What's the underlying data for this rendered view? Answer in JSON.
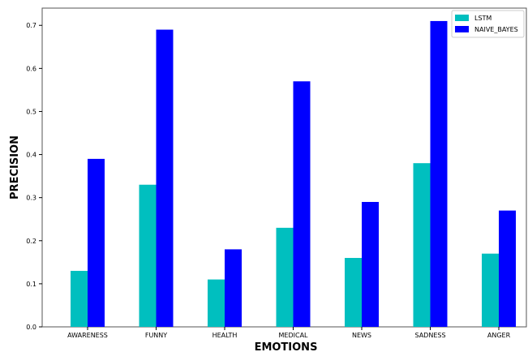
{
  "chart_data": {
    "type": "bar",
    "title": "",
    "xlabel": "EMOTIONS",
    "ylabel": "PRECISION",
    "categories": [
      "AWARENESS",
      "FUNNY",
      "HEALTH",
      "MEDICAL",
      "NEWS",
      "SADNESS",
      "ANGER"
    ],
    "series": [
      {
        "name": "LSTM",
        "color": "#00bfbf",
        "values": [
          0.13,
          0.33,
          0.11,
          0.23,
          0.16,
          0.38,
          0.17
        ]
      },
      {
        "name": "NAIVE_BAYES",
        "color": "#0000ff",
        "values": [
          0.39,
          0.69,
          0.18,
          0.57,
          0.29,
          0.71,
          0.27
        ]
      }
    ],
    "ylim": [
      0,
      0.74
    ],
    "yticks": [
      "0.0",
      "0.1",
      "0.2",
      "0.3",
      "0.4",
      "0.5",
      "0.6",
      "0.7"
    ],
    "legend_position": "top-right",
    "grid": false
  }
}
